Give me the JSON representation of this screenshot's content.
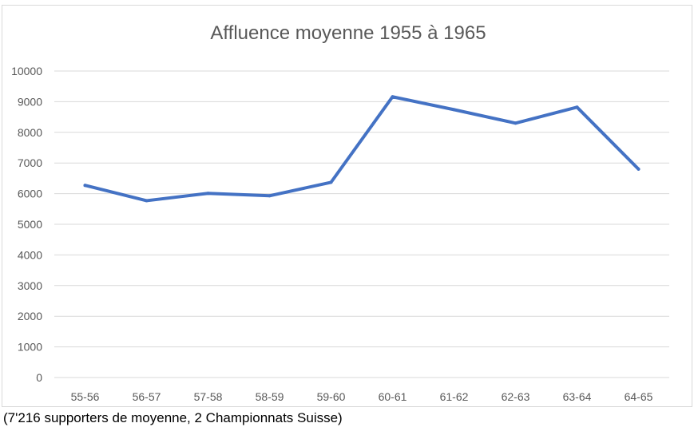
{
  "chart_data": {
    "type": "line",
    "title": "Affluence moyenne 1955 à 1965",
    "xlabel": "",
    "ylabel": "",
    "categories": [
      "55-56",
      "56-57",
      "57-58",
      "58-59",
      "59-60",
      "60-61",
      "61-62",
      "62-63",
      "63-64",
      "64-65"
    ],
    "series": [
      {
        "values": [
          6270,
          5770,
          6010,
          5930,
          6370,
          9160,
          8740,
          8300,
          8820,
          6800
        ]
      }
    ],
    "ylim": [
      0,
      10000
    ],
    "yticks": [
      0,
      1000,
      2000,
      3000,
      4000,
      5000,
      6000,
      7000,
      8000,
      9000,
      10000
    ],
    "ytick_labels": [
      "0",
      "1000",
      "2000",
      "3000",
      "4000",
      "5000",
      "6000",
      "7000",
      "8000",
      "9000",
      "10000"
    ],
    "grid": true,
    "legend": "none",
    "line_color": "#4472c4",
    "grid_color": "#d9d9d9",
    "text_color": "#595959"
  },
  "caption": "(7'216 supporters de moyenne, 2 Championnats Suisse)"
}
